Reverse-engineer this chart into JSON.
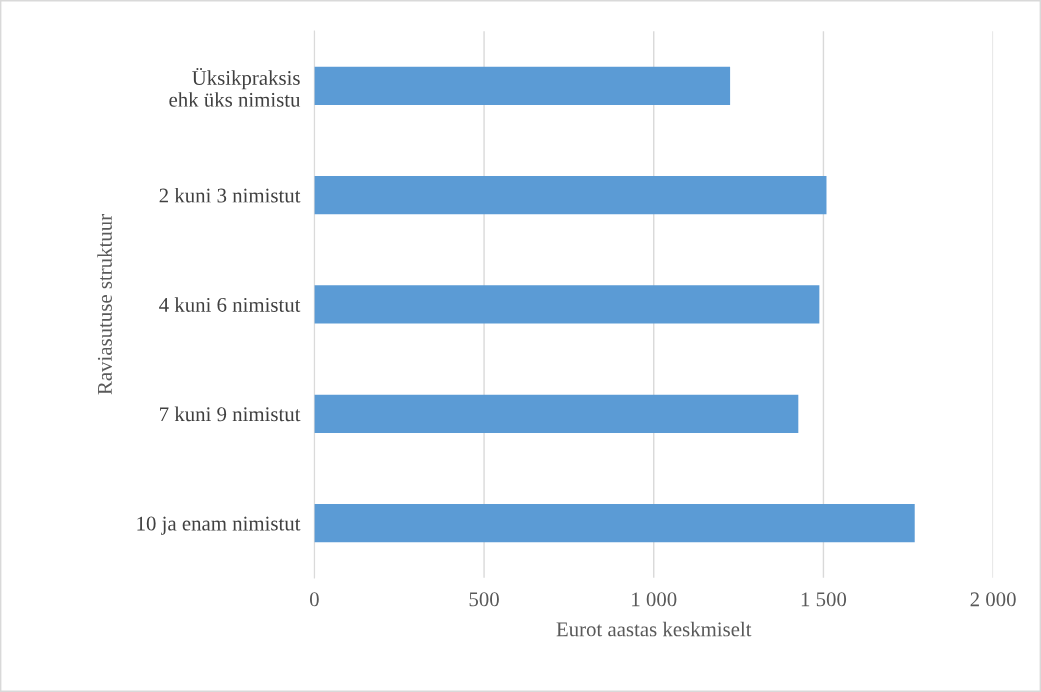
{
  "chart_data": {
    "type": "bar",
    "orientation": "horizontal",
    "xlabel": "Eurot aastas keskmiselt",
    "ylabel": "Raviasutuse struktuur",
    "categories": [
      "Üksikpraksis\nehk üks nimistu",
      "2 kuni 3 nimistut",
      "4 kuni 6 nimistut",
      "7 kuni 9 nimistut",
      "10 ja enam nimistut"
    ],
    "values": [
      1225,
      1509,
      1488,
      1426,
      1769
    ],
    "color": "#5b9bd5",
    "xlim": [
      0,
      2000
    ],
    "xticks": [
      0,
      500,
      {
        "value": 1000,
        "label": "1 000"
      },
      {
        "value": 1500,
        "label": "1 500"
      },
      {
        "value": 2000,
        "label": "2 000"
      }
    ],
    "grid": "x"
  }
}
